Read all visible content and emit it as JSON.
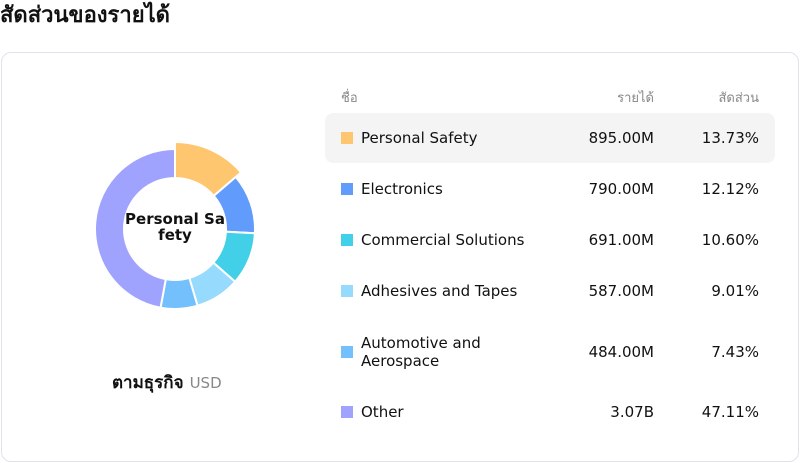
{
  "title": "สัดส่วนของรายได้",
  "center_label": "Personal Safety",
  "subtitle": "ตามธุรกิจ",
  "currency": "USD",
  "headers": {
    "name": "ชื่อ",
    "revenue": "รายได้",
    "share": "สัดส่วน"
  },
  "rows": [
    {
      "name": "Personal Safety",
      "revenue": "895.00M",
      "share": "13.73%",
      "pct": 13.73,
      "color": "#FFC670"
    },
    {
      "name": "Electronics",
      "revenue": "790.00M",
      "share": "12.12%",
      "pct": 12.12,
      "color": "#619BFB"
    },
    {
      "name": "Commercial Solutions",
      "revenue": "691.00M",
      "share": "10.60%",
      "pct": 10.6,
      "color": "#41D0E8"
    },
    {
      "name": "Adhesives and Tapes",
      "revenue": "587.00M",
      "share": "9.01%",
      "pct": 9.01,
      "color": "#96DAFD"
    },
    {
      "name": "Automotive and Aerospace",
      "revenue": "484.00M",
      "share": "7.43%",
      "pct": 7.43,
      "color": "#73C0FC"
    },
    {
      "name": "Other",
      "revenue": "3.07B",
      "share": "47.11%",
      "pct": 47.11,
      "color": "#A0A3FE"
    }
  ],
  "active_index": 0
}
